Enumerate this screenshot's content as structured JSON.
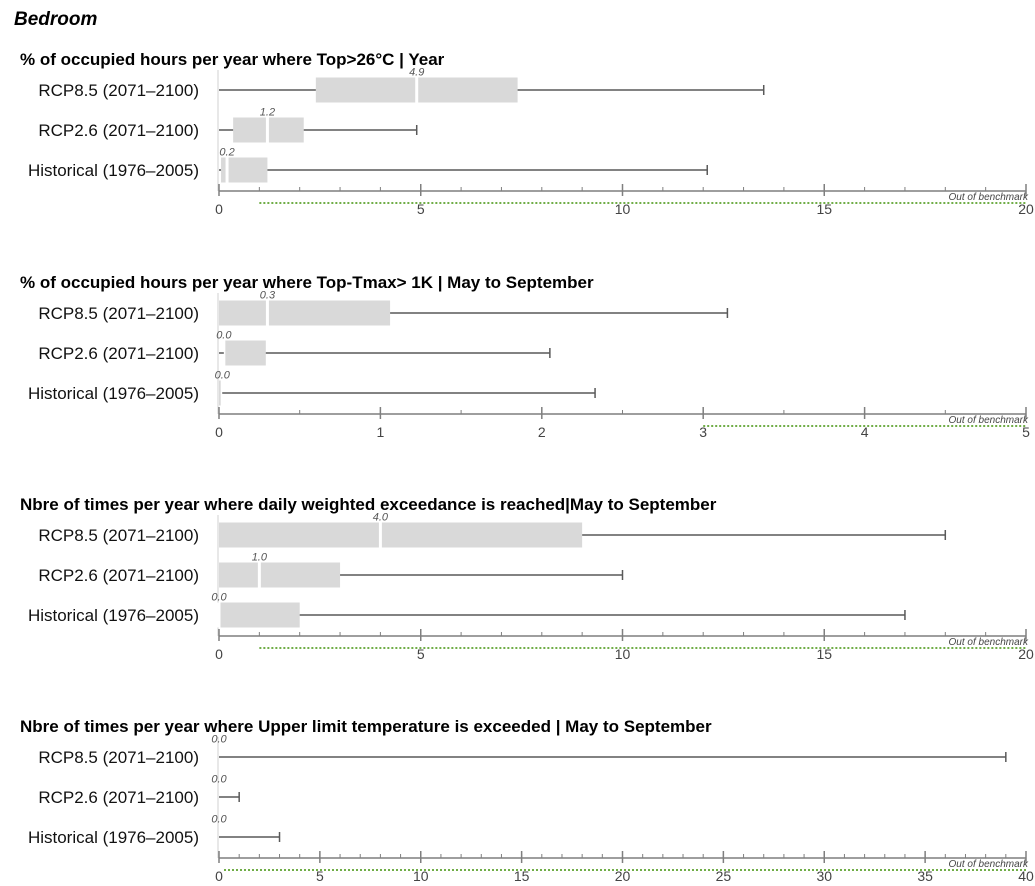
{
  "section_title": "Bedroom",
  "benchmark_label": "Out of benchmark",
  "colors": {
    "box_fill": "#d9d9d9",
    "whisker": "#595959",
    "axis": "#7f7f7f",
    "benchmark": "#70ad47"
  },
  "chart_data": [
    {
      "type": "box",
      "title": "% of occupied hours per year where Top>26°C | Year",
      "xlim": [
        0,
        20
      ],
      "xticks": [
        "0",
        "5",
        "10",
        "15",
        "20"
      ],
      "xtick_values": [
        0,
        5,
        10,
        15,
        20
      ],
      "minor_step": 1,
      "benchmark_from": 1,
      "rows": [
        {
          "label": "RCP8.5 (2071–2100)",
          "min": 0,
          "q1": 2.4,
          "median": 4.9,
          "q3": 7.4,
          "max": 13.5,
          "median_label": "4.9"
        },
        {
          "label": "RCP2.6 (2071–2100)",
          "min": 0,
          "q1": 0.35,
          "median": 1.2,
          "q3": 2.1,
          "max": 4.9,
          "median_label": "1.2"
        },
        {
          "label": "Historical (1976–2005)",
          "min": 0,
          "q1": 0.05,
          "median": 0.2,
          "q3": 1.2,
          "max": 12.1,
          "median_label": "0.2"
        }
      ]
    },
    {
      "type": "box",
      "title": "% of occupied hours per year where Top-Tmax> 1K | May to September",
      "xlim": [
        0,
        5
      ],
      "xticks": [
        "0",
        "1",
        "2",
        "3",
        "4",
        "5"
      ],
      "xtick_values": [
        0,
        1,
        2,
        3,
        4,
        5
      ],
      "minor_step": 0.5,
      "benchmark_from": 3,
      "rows": [
        {
          "label": "RCP8.5 (2071–2100)",
          "min": 0,
          "q1": 0,
          "median": 0.3,
          "q3": 1.06,
          "max": 3.15,
          "median_label": "0.3"
        },
        {
          "label": "RCP2.6 (2071–2100)",
          "min": 0,
          "q1": 0.03,
          "median": 0.03,
          "q3": 0.29,
          "max": 2.05,
          "median_label": "0.0"
        },
        {
          "label": "Historical (1976–2005)",
          "min": 0,
          "q1": 0,
          "median": 0.02,
          "q3": 0.02,
          "max": 2.33,
          "median_label": "0.0"
        }
      ]
    },
    {
      "type": "box",
      "title": "Nbre of times per year where daily weighted exceedance is reached|May to September",
      "xlim": [
        0,
        20
      ],
      "xticks": [
        "0",
        "5",
        "10",
        "15",
        "20"
      ],
      "xtick_values": [
        0,
        5,
        10,
        15,
        20
      ],
      "minor_step": 1,
      "benchmark_from": 1,
      "rows": [
        {
          "label": "RCP8.5 (2071–2100)",
          "min": 0,
          "q1": 0,
          "median": 4.0,
          "q3": 9.0,
          "max": 18.0,
          "median_label": "4.0"
        },
        {
          "label": "RCP2.6 (2071–2100)",
          "min": 0,
          "q1": 0,
          "median": 1.0,
          "q3": 3.0,
          "max": 10.0,
          "median_label": "1.0"
        },
        {
          "label": "Historical (1976–2005)",
          "min": 0,
          "q1": 0,
          "median": 0.0,
          "q3": 2.0,
          "max": 17.0,
          "median_label": "0.0"
        }
      ]
    },
    {
      "type": "box",
      "title": "Nbre of times per year where Upper limit temperature is exceeded | May to September",
      "xlim": [
        0,
        40
      ],
      "xticks": [
        "0",
        "5",
        "10",
        "15",
        "20",
        "25",
        "30",
        "35",
        "40"
      ],
      "xtick_values": [
        0,
        5,
        10,
        15,
        20,
        25,
        30,
        35,
        40
      ],
      "minor_step": 1,
      "benchmark_from": 0,
      "rows": [
        {
          "label": "RCP8.5 (2071–2100)",
          "min": 0,
          "q1": 0,
          "median": 0,
          "q3": 0,
          "max": 39.0,
          "median_label": "0.0"
        },
        {
          "label": "RCP2.6 (2071–2100)",
          "min": 0,
          "q1": 0,
          "median": 0,
          "q3": 0,
          "max": 1.0,
          "median_label": "0.0"
        },
        {
          "label": "Historical (1976–2005)",
          "min": 0,
          "q1": 0,
          "median": 0,
          "q3": 0,
          "max": 3.0,
          "median_label": "0.0"
        }
      ]
    }
  ]
}
